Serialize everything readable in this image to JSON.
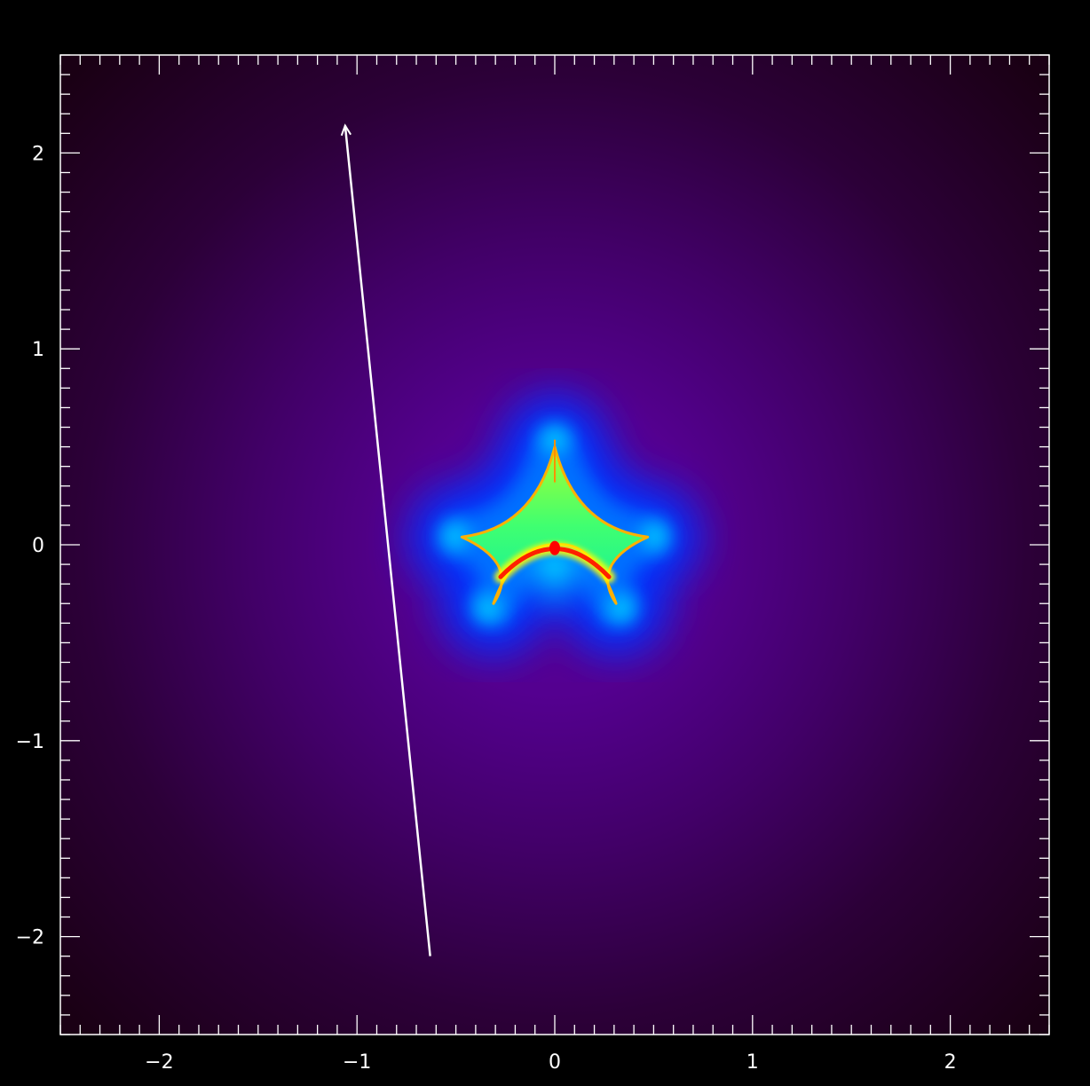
{
  "chart_data": {
    "type": "heatmap",
    "title": "",
    "xlabel": "",
    "ylabel": "",
    "xlim": [
      -2.5,
      2.5
    ],
    "ylim": [
      -2.5,
      2.5
    ],
    "x_ticks": [
      -2,
      -1,
      0,
      1,
      2
    ],
    "y_ticks": [
      -2,
      -1,
      0,
      1,
      2
    ],
    "x_tick_labels": [
      "−2",
      "−1",
      "0",
      "1",
      "2"
    ],
    "y_tick_labels": [
      "−2",
      "−1",
      "0",
      "1",
      "2"
    ],
    "minor_tick_step": 0.1,
    "grid": false,
    "colormap": [
      "#1e0018",
      "#3a0048",
      "#5a0090",
      "#0000ff",
      "#00c8ff",
      "#00ff80",
      "#b0ff00",
      "#ff0000"
    ],
    "caustic": {
      "cusps": [
        {
          "x": 0.0,
          "y": 0.5
        },
        {
          "x": 0.47,
          "y": 0.04
        },
        {
          "x": 0.31,
          "y": -0.3
        },
        {
          "x": -0.31,
          "y": -0.3
        },
        {
          "x": -0.47,
          "y": 0.04
        }
      ],
      "inner_fold_peak": {
        "x": 0.0,
        "y": -0.08
      }
    },
    "trajectory": {
      "start": {
        "x": -0.63,
        "y": -2.1
      },
      "end": {
        "x": -1.06,
        "y": 2.14
      },
      "color": "#ffffff",
      "direction": "arrow-at-end"
    }
  }
}
